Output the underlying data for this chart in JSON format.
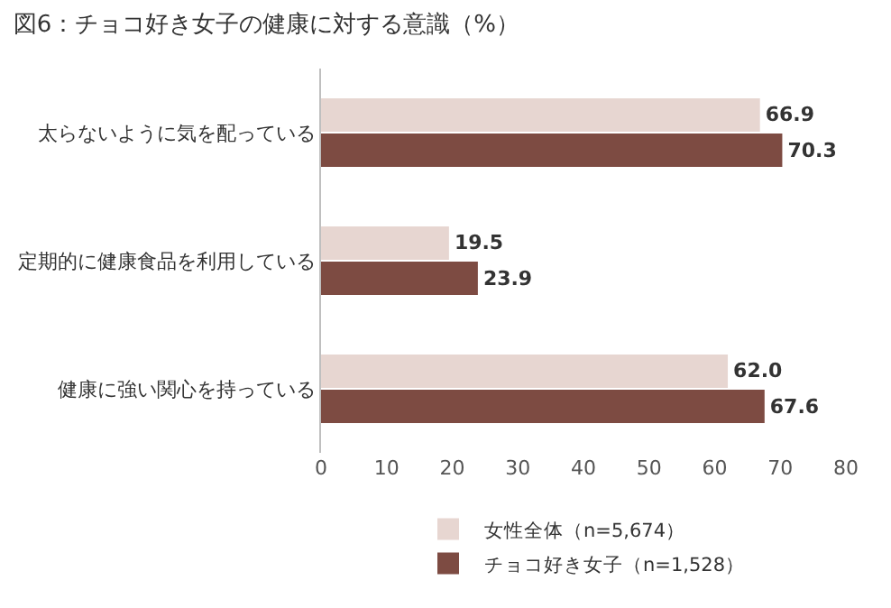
{
  "chart_data": {
    "type": "bar",
    "orientation": "horizontal",
    "title": "図6：チョコ好き女子の健康に対する意識（%）",
    "categories": [
      "太らないように気を配っている",
      "定期的に健康食品を利用している",
      "健康に強い関心を持っている"
    ],
    "series": [
      {
        "name": "女性全体（n=5,674）",
        "color": "#e7d6d1",
        "values": [
          66.9,
          19.5,
          62.0
        ],
        "value_labels": [
          "66.9",
          "19.5",
          "62.0"
        ]
      },
      {
        "name": "チョコ好き女子（n=1,528）",
        "color": "#7d4b42",
        "values": [
          70.3,
          23.9,
          67.6
        ],
        "value_labels": [
          "70.3",
          "23.9",
          "67.6"
        ]
      }
    ],
    "xlim": [
      0,
      80
    ],
    "xticks": [
      0,
      10,
      20,
      30,
      40,
      50,
      60,
      70,
      80
    ],
    "grid": false,
    "legend": "bottom"
  }
}
